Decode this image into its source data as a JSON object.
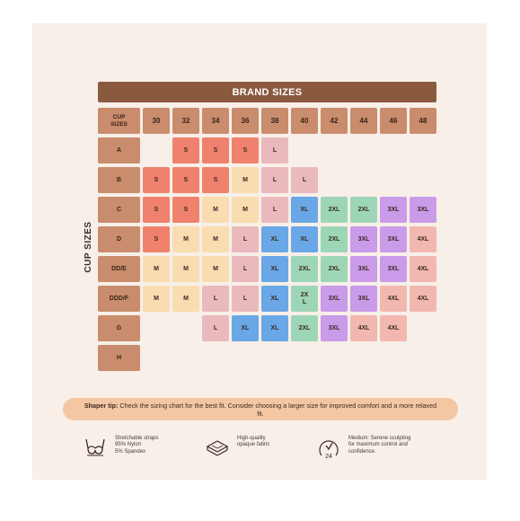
{
  "chart_data": {
    "type": "table",
    "title": "BRAND SIZES",
    "row_axis_label": "CUP SIZES",
    "corner_label": "CUP SIZES",
    "columns": [
      "30",
      "32",
      "34",
      "36",
      "38",
      "40",
      "42",
      "44",
      "46",
      "48"
    ],
    "rows": [
      {
        "cup": "A",
        "sizes": [
          "",
          "S",
          "S",
          "S",
          "L",
          "",
          "",
          "",
          "",
          ""
        ]
      },
      {
        "cup": "B",
        "sizes": [
          "S",
          "S",
          "S",
          "M",
          "L",
          "L",
          "",
          "",
          "",
          ""
        ]
      },
      {
        "cup": "C",
        "sizes": [
          "S",
          "S",
          "M",
          "M",
          "L",
          "XL",
          "2XL",
          "2XL",
          "3XL",
          "3XL"
        ]
      },
      {
        "cup": "D",
        "sizes": [
          "S",
          "M",
          "M",
          "L",
          "XL",
          "XL",
          "2XL",
          "3XL",
          "3XL",
          "4XL"
        ]
      },
      {
        "cup": "DD/E",
        "sizes": [
          "M",
          "M",
          "M",
          "L",
          "XL",
          "2XL",
          "2XL",
          "3XL",
          "3XL",
          "4XL"
        ]
      },
      {
        "cup": "DDD/F",
        "sizes": [
          "M",
          "M",
          "L",
          "L",
          "XL",
          "2X L",
          "3XL",
          "3XL",
          "4XL",
          "4XL"
        ]
      },
      {
        "cup": "G",
        "sizes": [
          "",
          "",
          "L",
          "XL",
          "XL",
          "2XL",
          "3XL",
          "4XL",
          "4XL",
          ""
        ]
      },
      {
        "cup": "H",
        "sizes": [
          "",
          "",
          "",
          "",
          "",
          "",
          "",
          "",
          "",
          ""
        ]
      }
    ],
    "size_colors": {
      "S": "#f0826d",
      "M": "#f9dcb0",
      "L": "#eab9bd",
      "XL": "#6aa7e6",
      "2XL": "#9dd6b6",
      "3XL": "#c99be8",
      "4XL": "#f2b8b0"
    },
    "header_color": "#8a5a3f",
    "label_cell_color": "#c98c6c"
  },
  "tip": {
    "bold": "Shaper tip:",
    "text": " Check the sizing chart for the best fit. Consider choosing a larger size for improved comfort and a more relaxed fit."
  },
  "features": [
    {
      "icon": "bra-icon",
      "lines": [
        "Stretchable straps",
        "95% Nylon",
        "5% Spandex"
      ]
    },
    {
      "icon": "fabric-layers-icon",
      "lines": [
        "High-quality",
        "opaque fabric"
      ]
    },
    {
      "icon": "sculpt-level-icon",
      "lines": [
        "Medium: Serene sculpting",
        "for maximum control and",
        "confidence."
      ]
    }
  ]
}
